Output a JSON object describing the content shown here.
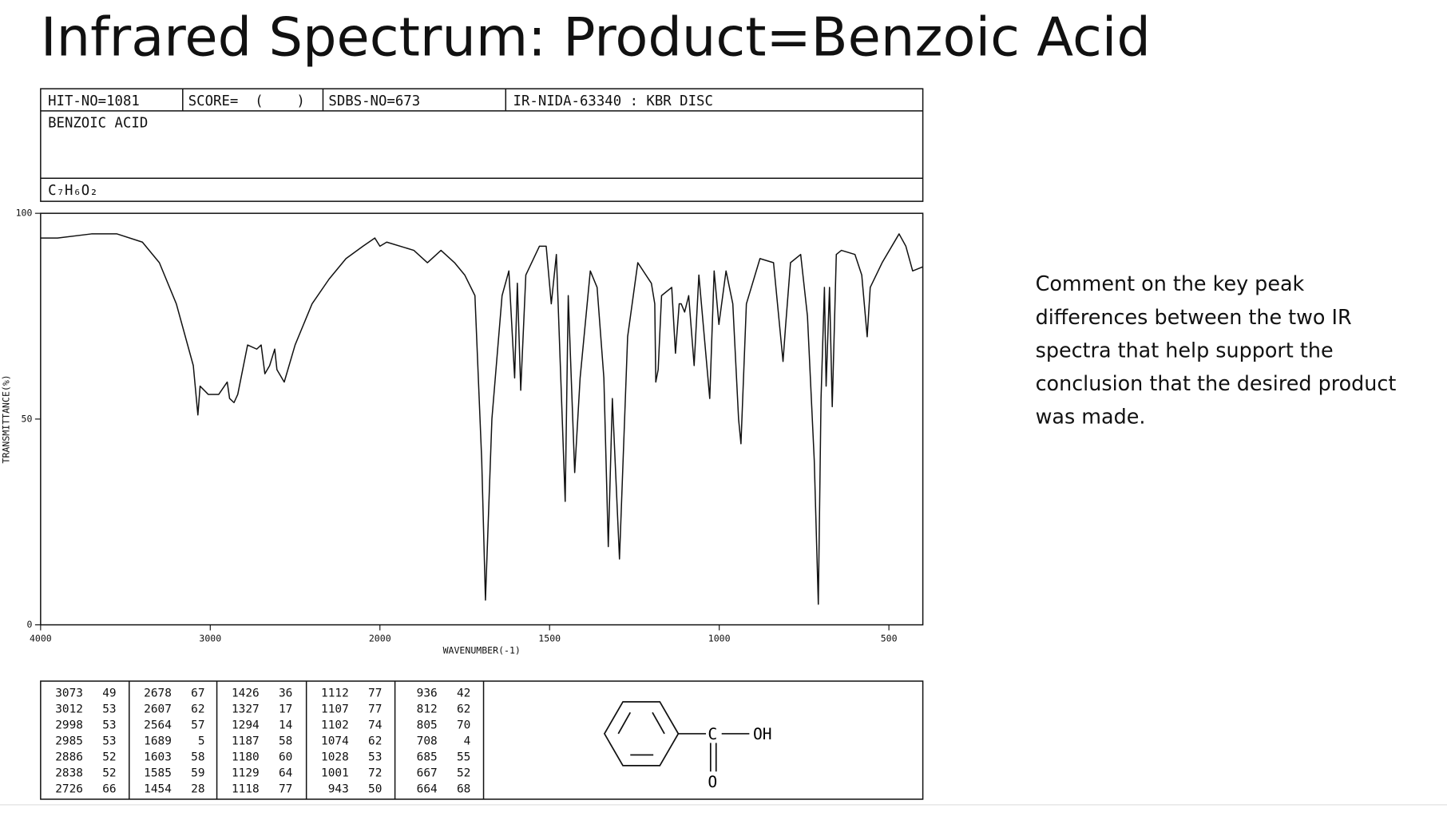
{
  "title": "Infrared Spectrum: Product=Benzoic Acid",
  "header": {
    "hit_no": "HIT-NO=1081",
    "score": "SCORE=  (    )",
    "sdbs_no": "SDBS-NO=673",
    "ir_id": "IR-NIDA-63340 : KBR DISC",
    "name": "BENZOIC ACID",
    "formula": "C₇H₆O₂"
  },
  "chart_data": {
    "type": "line",
    "xlabel": "WAVENUMBER(-1)",
    "ylabel": "TRANSMITTANCE(%)",
    "color": "#111111",
    "xlim": [
      4000,
      400
    ],
    "xticks": [
      4000,
      3000,
      2000,
      1500,
      1000,
      500
    ],
    "ylim": [
      0,
      100
    ],
    "yticks": [
      0,
      50,
      100
    ],
    "x": [
      4000,
      3900,
      3700,
      3550,
      3400,
      3300,
      3200,
      3100,
      3073,
      3060,
      3012,
      2950,
      2900,
      2886,
      2860,
      2838,
      2780,
      2726,
      2700,
      2678,
      2650,
      2620,
      2607,
      2564,
      2500,
      2400,
      2300,
      2200,
      2100,
      2030,
      2000,
      1980,
      1900,
      1860,
      1820,
      1780,
      1750,
      1720,
      1700,
      1689,
      1670,
      1640,
      1620,
      1603,
      1595,
      1585,
      1570,
      1530,
      1510,
      1495,
      1480,
      1454,
      1445,
      1426,
      1410,
      1380,
      1360,
      1340,
      1327,
      1315,
      1294,
      1270,
      1240,
      1200,
      1190,
      1187,
      1180,
      1170,
      1140,
      1129,
      1118,
      1112,
      1102,
      1090,
      1074,
      1060,
      1028,
      1015,
      1001,
      980,
      960,
      943,
      936,
      920,
      880,
      840,
      812,
      805,
      790,
      760,
      740,
      720,
      708,
      700,
      690,
      685,
      675,
      667,
      655,
      640,
      600,
      580,
      564,
      555,
      520,
      470,
      450,
      430,
      400
    ],
    "values": [
      94,
      94,
      95,
      95,
      93,
      88,
      78,
      63,
      51,
      58,
      56,
      56,
      59,
      55,
      54,
      56,
      68,
      67,
      68,
      61,
      63,
      67,
      62,
      59,
      68,
      78,
      84,
      89,
      92,
      94,
      92,
      93,
      91,
      88,
      91,
      88,
      85,
      80,
      40,
      6,
      50,
      80,
      86,
      60,
      83,
      57,
      85,
      92,
      92,
      78,
      90,
      30,
      80,
      37,
      60,
      86,
      82,
      60,
      19,
      55,
      16,
      70,
      88,
      83,
      78,
      59,
      62,
      80,
      82,
      66,
      78,
      78,
      76,
      80,
      63,
      85,
      55,
      86,
      73,
      86,
      78,
      50,
      44,
      78,
      89,
      88,
      64,
      72,
      88,
      90,
      75,
      40,
      5,
      55,
      82,
      58,
      82,
      53,
      90,
      91,
      90,
      85,
      70,
      82,
      88,
      95,
      92,
      86,
      87
    ]
  },
  "peak_table": [
    [
      [
        3073,
        49
      ],
      [
        3012,
        53
      ],
      [
        2998,
        53
      ],
      [
        2985,
        53
      ],
      [
        2886,
        52
      ],
      [
        2838,
        52
      ],
      [
        2726,
        66
      ]
    ],
    [
      [
        2678,
        67
      ],
      [
        2607,
        62
      ],
      [
        2564,
        57
      ],
      [
        1689,
        5
      ],
      [
        1603,
        58
      ],
      [
        1585,
        59
      ],
      [
        1454,
        28
      ]
    ],
    [
      [
        1426,
        36
      ],
      [
        1327,
        17
      ],
      [
        1294,
        14
      ],
      [
        1187,
        58
      ],
      [
        1180,
        60
      ],
      [
        1129,
        64
      ],
      [
        1118,
        77
      ]
    ],
    [
      [
        1112,
        77
      ],
      [
        1107,
        77
      ],
      [
        1102,
        74
      ],
      [
        1074,
        62
      ],
      [
        1028,
        53
      ],
      [
        1001,
        72
      ],
      [
        943,
        50
      ]
    ],
    [
      [
        936,
        42
      ],
      [
        812,
        62
      ],
      [
        805,
        70
      ],
      [
        708,
        4
      ],
      [
        685,
        55
      ],
      [
        667,
        52
      ],
      [
        664,
        68
      ]
    ]
  ],
  "structure": {
    "carbon": "C",
    "hydroxyl": "OH",
    "oxygen": "O"
  },
  "comment": {
    "lines": [
      "Comment on the key peak",
      "differences between the two IR",
      "spectra that help support the",
      "conclusion that the desired product",
      "was made."
    ]
  }
}
